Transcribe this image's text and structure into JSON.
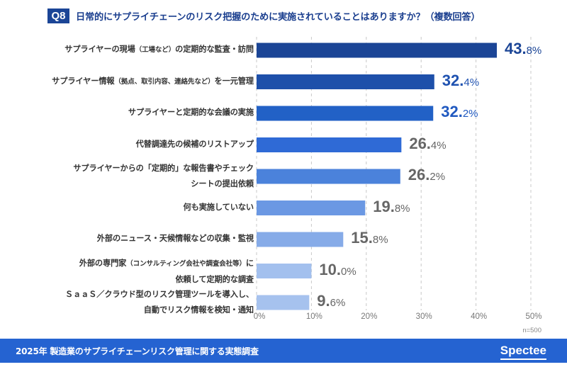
{
  "header": {
    "badge": "Q8",
    "question": "日常的にサプライチェーンのリスク把握のために実施されていることはありますか？（複数回答）"
  },
  "chart_data": {
    "type": "bar",
    "orientation": "horizontal",
    "title": "日常的にサプライチェーンのリスク把握のために実施されていることはありますか？（複数回答）",
    "categories": [
      [
        "サプライヤーの現場",
        "（工場など）",
        "の定期的な監査・訪問"
      ],
      [
        "サプライヤー情報",
        "（拠点、取引内容、連絡先など）",
        "を一元管理"
      ],
      [
        "サプライヤーと定期的な会議の実施"
      ],
      [
        "代替調達先の候補のリストアップ"
      ],
      [
        "サプライヤーからの「定期的」な報告書やチェック",
        "シートの提出依頼"
      ],
      [
        "何も実施していない"
      ],
      [
        "外部のニュース・天候情報などの収集・監視"
      ],
      [
        "外部の専門家",
        "（コンサルティング会社や調査会社等）",
        "に",
        "依頼して定期的な調査"
      ],
      [
        "ＳａａＳ／クラウド型のリスク管理ツールを導入し、",
        "自動でリスク情報を検知・通知"
      ]
    ],
    "values": [
      43.8,
      32.4,
      32.2,
      26.4,
      26.2,
      19.8,
      15.8,
      10.0,
      9.6
    ],
    "value_labels": [
      {
        "int": "43.",
        "dec": "8%"
      },
      {
        "int": "32.",
        "dec": "4%"
      },
      {
        "int": "32.",
        "dec": "2%"
      },
      {
        "int": "26.",
        "dec": "4%"
      },
      {
        "int": "26.",
        "dec": "2%"
      },
      {
        "int": "19.",
        "dec": "8%"
      },
      {
        "int": "15.",
        "dec": "8%"
      },
      {
        "int": "10.",
        "dec": "0%"
      },
      {
        "int": "9.",
        "dec": "6%"
      }
    ],
    "bar_colors": [
      "#1b4596",
      "#1e50aa",
      "#2261c6",
      "#2f6ad6",
      "#4b82db",
      "#6b98e3",
      "#86abe8",
      "#a3c0ee",
      "#a6c2ee"
    ],
    "label_colors": [
      "#1b4596",
      "#1f52b0",
      "#2059c0",
      "#666666",
      "#666666",
      "#666666",
      "#666666",
      "#666666",
      "#666666"
    ],
    "xlim": [
      0,
      50
    ],
    "xticks": [
      0,
      10,
      20,
      30,
      40,
      50
    ],
    "xtick_labels": [
      "0%",
      "10%",
      "20%",
      "30%",
      "40%",
      "50%"
    ],
    "grid": "vertical dashed",
    "note": "n=500"
  },
  "footer": {
    "title": "2025年 製造業のサプライチェーンリスク管理に関する実態調査",
    "logo": "Spectee"
  }
}
